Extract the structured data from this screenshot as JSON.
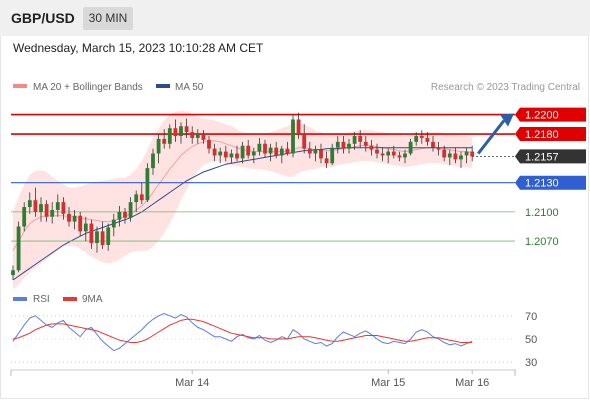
{
  "header": {
    "symbol": "GBP/USD",
    "timeframe": "30 MIN",
    "datetime": "Wednesday, March 15, 2023 10:10:28 AM CET"
  },
  "legend": {
    "ma20_label": "MA 20 + Bollinger Bands",
    "ma20_color": "#f28b82",
    "ma50_label": "MA 50",
    "ma50_color": "#2a4d8f",
    "copyright": "Research © 2023 Trading Central"
  },
  "chart_data": [
    {
      "type": "candlestick",
      "x_labels": [
        "Mar 14",
        "Mar 15",
        "Mar 16"
      ],
      "ylim": [
        1.203,
        1.2215
      ],
      "candles": [
        [
          1.2035,
          1.2045,
          1.203,
          1.204
        ],
        [
          1.204,
          1.209,
          1.2038,
          1.2085
        ],
        [
          1.2085,
          1.211,
          1.208,
          1.2105
        ],
        [
          1.2105,
          1.212,
          1.2098,
          1.2112
        ],
        [
          1.2112,
          1.2125,
          1.2095,
          1.21
        ],
        [
          1.21,
          1.2115,
          1.209,
          1.2108
        ],
        [
          1.2108,
          1.2112,
          1.209,
          1.2095
        ],
        [
          1.2095,
          1.211,
          1.2088,
          1.2102
        ],
        [
          1.2102,
          1.2118,
          1.2095,
          1.211
        ],
        [
          1.211,
          1.2115,
          1.2092,
          1.2098
        ],
        [
          1.2098,
          1.2105,
          1.2085,
          1.209
        ],
        [
          1.209,
          1.2102,
          1.2082,
          1.2096
        ],
        [
          1.2096,
          1.21,
          1.2075,
          1.208
        ],
        [
          1.208,
          1.2095,
          1.207,
          1.2088
        ],
        [
          1.2088,
          1.2092,
          1.2062,
          1.2068
        ],
        [
          1.2068,
          1.2085,
          1.2058,
          1.208
        ],
        [
          1.208,
          1.209,
          1.2062,
          1.2066
        ],
        [
          1.2066,
          1.2088,
          1.206,
          1.2084
        ],
        [
          1.2084,
          1.2098,
          1.2075,
          1.2092
        ],
        [
          1.2092,
          1.2106,
          1.2085,
          1.21
        ],
        [
          1.21,
          1.2104,
          1.2088,
          1.2094
        ],
        [
          1.2094,
          1.2115,
          1.209,
          1.211
        ],
        [
          1.211,
          1.2122,
          1.21,
          1.2118
        ],
        [
          1.2118,
          1.213,
          1.2108,
          1.2112
        ],
        [
          1.2112,
          1.215,
          1.211,
          1.2145
        ],
        [
          1.2145,
          1.2165,
          1.2138,
          1.216
        ],
        [
          1.216,
          1.218,
          1.215,
          1.2175
        ],
        [
          1.2175,
          1.2185,
          1.2165,
          1.217
        ],
        [
          1.217,
          1.219,
          1.2165,
          1.2186
        ],
        [
          1.2186,
          1.2195,
          1.2172,
          1.2178
        ],
        [
          1.2178,
          1.2192,
          1.217,
          1.2188
        ],
        [
          1.2188,
          1.2196,
          1.2176,
          1.2182
        ],
        [
          1.2182,
          1.2188,
          1.217,
          1.2176
        ],
        [
          1.2176,
          1.2185,
          1.217,
          1.218
        ],
        [
          1.218,
          1.2184,
          1.217,
          1.2174
        ],
        [
          1.2174,
          1.2178,
          1.216,
          1.2165
        ],
        [
          1.2165,
          1.217,
          1.2152,
          1.2158
        ],
        [
          1.2158,
          1.2166,
          1.215,
          1.2162
        ],
        [
          1.2162,
          1.2168,
          1.2152,
          1.2156
        ],
        [
          1.2156,
          1.2164,
          1.215,
          1.216
        ],
        [
          1.216,
          1.2168,
          1.2152,
          1.2155
        ],
        [
          1.2155,
          1.2172,
          1.215,
          1.2168
        ],
        [
          1.2168,
          1.2174,
          1.2155,
          1.2158
        ],
        [
          1.2158,
          1.2166,
          1.215,
          1.2162
        ],
        [
          1.2162,
          1.2176,
          1.2158,
          1.217
        ],
        [
          1.217,
          1.2174,
          1.2156,
          1.216
        ],
        [
          1.216,
          1.217,
          1.2152,
          1.2166
        ],
        [
          1.2166,
          1.2172,
          1.2155,
          1.2158
        ],
        [
          1.2158,
          1.2168,
          1.215,
          1.2165
        ],
        [
          1.2165,
          1.2172,
          1.2158,
          1.216
        ],
        [
          1.216,
          1.22,
          1.2156,
          1.2195
        ],
        [
          1.2195,
          1.2202,
          1.2175,
          1.218
        ],
        [
          1.218,
          1.219,
          1.216,
          1.2165
        ],
        [
          1.2165,
          1.2172,
          1.2155,
          1.216
        ],
        [
          1.216,
          1.2168,
          1.2152,
          1.2164
        ],
        [
          1.2164,
          1.217,
          1.215,
          1.2155
        ],
        [
          1.2155,
          1.2162,
          1.2145,
          1.215
        ],
        [
          1.215,
          1.217,
          1.2148,
          1.2166
        ],
        [
          1.2166,
          1.2178,
          1.216,
          1.2172
        ],
        [
          1.2172,
          1.2178,
          1.216,
          1.2165
        ],
        [
          1.2165,
          1.2175,
          1.216,
          1.217
        ],
        [
          1.217,
          1.2182,
          1.2164,
          1.2178
        ],
        [
          1.2178,
          1.2184,
          1.2166,
          1.2172
        ],
        [
          1.2172,
          1.2178,
          1.2162,
          1.2168
        ],
        [
          1.2168,
          1.2174,
          1.2158,
          1.2164
        ],
        [
          1.2164,
          1.217,
          1.2155,
          1.216
        ],
        [
          1.216,
          1.2166,
          1.2152,
          1.2158
        ],
        [
          1.2158,
          1.2165,
          1.215,
          1.2162
        ],
        [
          1.2162,
          1.2168,
          1.2155,
          1.2158
        ],
        [
          1.2158,
          1.2162,
          1.2152,
          1.2156
        ],
        [
          1.2156,
          1.2164,
          1.215,
          1.216
        ],
        [
          1.216,
          1.2175,
          1.2158,
          1.2172
        ],
        [
          1.2172,
          1.2182,
          1.2168,
          1.2178
        ],
        [
          1.2178,
          1.2184,
          1.217,
          1.2176
        ],
        [
          1.2176,
          1.2182,
          1.2168,
          1.2172
        ],
        [
          1.2172,
          1.2178,
          1.2162,
          1.2166
        ],
        [
          1.2166,
          1.2172,
          1.2158,
          1.2164
        ],
        [
          1.2164,
          1.2168,
          1.2152,
          1.2156
        ],
        [
          1.2156,
          1.2164,
          1.2148,
          1.216
        ],
        [
          1.216,
          1.2166,
          1.215,
          1.2154
        ],
        [
          1.2154,
          1.2162,
          1.2145,
          1.2158
        ],
        [
          1.2158,
          1.2166,
          1.215,
          1.2162
        ],
        [
          1.2162,
          1.2168,
          1.2152,
          1.2157
        ]
      ],
      "ma20": [
        1.206,
        1.207,
        1.208,
        1.2088,
        1.2092,
        1.2095,
        1.2096,
        1.2096,
        1.2096,
        1.2096,
        1.2095,
        1.2095,
        1.2094,
        1.2093,
        1.2092,
        1.2091,
        1.209,
        1.209,
        1.2091,
        1.2093,
        1.2095,
        1.2098,
        1.2102,
        1.2106,
        1.2112,
        1.212,
        1.2128,
        1.2136,
        1.2144,
        1.2151,
        1.2158,
        1.2163,
        1.2167,
        1.217,
        1.2172,
        1.2173,
        1.2173,
        1.2172,
        1.217,
        1.2168,
        1.2166,
        1.2164,
        1.2163,
        1.2162,
        1.2162,
        1.2162,
        1.2162,
        1.2162,
        1.2162,
        1.2162,
        1.2164,
        1.2166,
        1.2166,
        1.2165,
        1.2164,
        1.2164,
        1.2163,
        1.2163,
        1.2164,
        1.2165,
        1.2166,
        1.2167,
        1.2168,
        1.2168,
        1.2168,
        1.2167,
        1.2166,
        1.2165,
        1.2164,
        1.2163,
        1.2162,
        1.2163,
        1.2164,
        1.2165,
        1.2166,
        1.2166,
        1.2166,
        1.2165,
        1.2164,
        1.2163,
        1.2162,
        1.2162,
        1.2161
      ],
      "bb_width": [
        0.004,
        0.0045,
        0.0048,
        0.005,
        0.005,
        0.0048,
        0.0045,
        0.004,
        0.0036,
        0.0032,
        0.003,
        0.003,
        0.0032,
        0.0035,
        0.0038,
        0.004,
        0.0042,
        0.0043,
        0.0043,
        0.0042,
        0.004,
        0.004,
        0.0042,
        0.0046,
        0.0052,
        0.0056,
        0.0058,
        0.0058,
        0.0056,
        0.0052,
        0.0046,
        0.004,
        0.0034,
        0.0028,
        0.0024,
        0.0022,
        0.0021,
        0.002,
        0.002,
        0.002,
        0.0019,
        0.0018,
        0.0018,
        0.0018,
        0.0018,
        0.0019,
        0.002,
        0.0022,
        0.0024,
        0.0026,
        0.0028,
        0.0026,
        0.0024,
        0.0022,
        0.002,
        0.0018,
        0.0017,
        0.0017,
        0.0016,
        0.0016,
        0.0016,
        0.0016,
        0.0016,
        0.0016,
        0.0016,
        0.0016,
        0.0016,
        0.0016,
        0.0016,
        0.0016,
        0.0016,
        0.0016,
        0.0016,
        0.0016,
        0.0016,
        0.0016,
        0.0016,
        0.0016,
        0.0016,
        0.0016,
        0.0016,
        0.0016,
        0.0016
      ],
      "ma50": [
        1.203,
        1.2034,
        1.2038,
        1.2042,
        1.2046,
        1.205,
        1.2054,
        1.2058,
        1.2062,
        1.2066,
        1.2069,
        1.2072,
        1.2075,
        1.2078,
        1.208,
        1.2082,
        1.2084,
        1.2086,
        1.2088,
        1.209,
        1.2092,
        1.2094,
        1.2097,
        1.21,
        1.2104,
        1.2108,
        1.2112,
        1.2116,
        1.212,
        1.2124,
        1.2128,
        1.2132,
        1.2135,
        1.2138,
        1.2141,
        1.2143,
        1.2145,
        1.2147,
        1.2149,
        1.215,
        1.2151,
        1.2152,
        1.2153,
        1.2154,
        1.2155,
        1.2156,
        1.2157,
        1.2158,
        1.2159,
        1.216,
        1.2161,
        1.2162,
        1.2163,
        1.2163,
        1.2164,
        1.2164,
        1.2165,
        1.2165,
        1.2165,
        1.2166,
        1.2166,
        1.2166,
        1.2166,
        1.2166,
        1.2166,
        1.2166,
        1.2166,
        1.2166,
        1.2166,
        1.2166,
        1.2166,
        1.2166,
        1.2166,
        1.2166,
        1.2166,
        1.2166,
        1.2166,
        1.2166,
        1.2166,
        1.2166,
        1.2166,
        1.2166,
        1.2166
      ],
      "levels": [
        {
          "value": 1.22,
          "label": "1.2200",
          "kind": "resistance"
        },
        {
          "value": 1.218,
          "label": "1.2180",
          "kind": "resistance"
        },
        {
          "value": 1.2157,
          "label": "1.2157",
          "kind": "last"
        },
        {
          "value": 1.213,
          "label": "1.2130",
          "kind": "pivot"
        },
        {
          "value": 1.21,
          "label": "1.2100",
          "kind": "support"
        },
        {
          "value": 1.207,
          "label": "1.2070",
          "kind": "support"
        }
      ],
      "projection": {
        "from": 1.216,
        "to": 1.22,
        "direction": "up"
      },
      "colors": {
        "up": "#2e7d32",
        "down": "#d32f2f",
        "resistance": "#e00000",
        "pivot": "#2f5fd0",
        "support": "#6abf69",
        "last": "#333333",
        "bands": "#ffdede",
        "arrow": "#2a5ea8"
      }
    },
    {
      "type": "line",
      "legend": [
        {
          "name": "RSI",
          "color": "#5b7fdb"
        },
        {
          "name": "9MA",
          "color": "#e53935"
        }
      ],
      "ylim": [
        25,
        75
      ],
      "yticks": [
        70,
        50,
        30
      ],
      "rsi": [
        48,
        55,
        62,
        68,
        70,
        66,
        62,
        60,
        64,
        66,
        60,
        56,
        52,
        58,
        60,
        54,
        48,
        44,
        40,
        42,
        46,
        50,
        54,
        58,
        63,
        67,
        70,
        72,
        70,
        68,
        71,
        69,
        64,
        60,
        58,
        55,
        52,
        52,
        50,
        48,
        52,
        54,
        51,
        50,
        53,
        49,
        47,
        49,
        52,
        50,
        58,
        55,
        50,
        48,
        46,
        47,
        44,
        46,
        52,
        56,
        54,
        52,
        55,
        57,
        54,
        50,
        47,
        46,
        48,
        47,
        46,
        50,
        56,
        58,
        56,
        52,
        50,
        47,
        45,
        46,
        44,
        46,
        48
      ],
      "ma9": [
        50,
        51,
        53,
        55,
        58,
        60,
        62,
        63,
        63,
        63,
        62,
        61,
        60,
        59,
        58,
        57,
        55,
        53,
        51,
        49,
        48,
        47,
        47,
        48,
        50,
        53,
        56,
        59,
        62,
        64,
        66,
        67,
        67,
        66,
        65,
        63,
        61,
        59,
        57,
        55,
        54,
        53,
        52,
        51,
        51,
        51,
        50,
        50,
        50,
        50,
        51,
        52,
        52,
        52,
        51,
        50,
        49,
        48,
        48,
        49,
        50,
        51,
        52,
        53,
        53,
        53,
        52,
        51,
        50,
        49,
        48,
        48,
        49,
        50,
        51,
        51,
        51,
        50,
        49,
        48,
        47,
        47,
        47
      ]
    }
  ]
}
